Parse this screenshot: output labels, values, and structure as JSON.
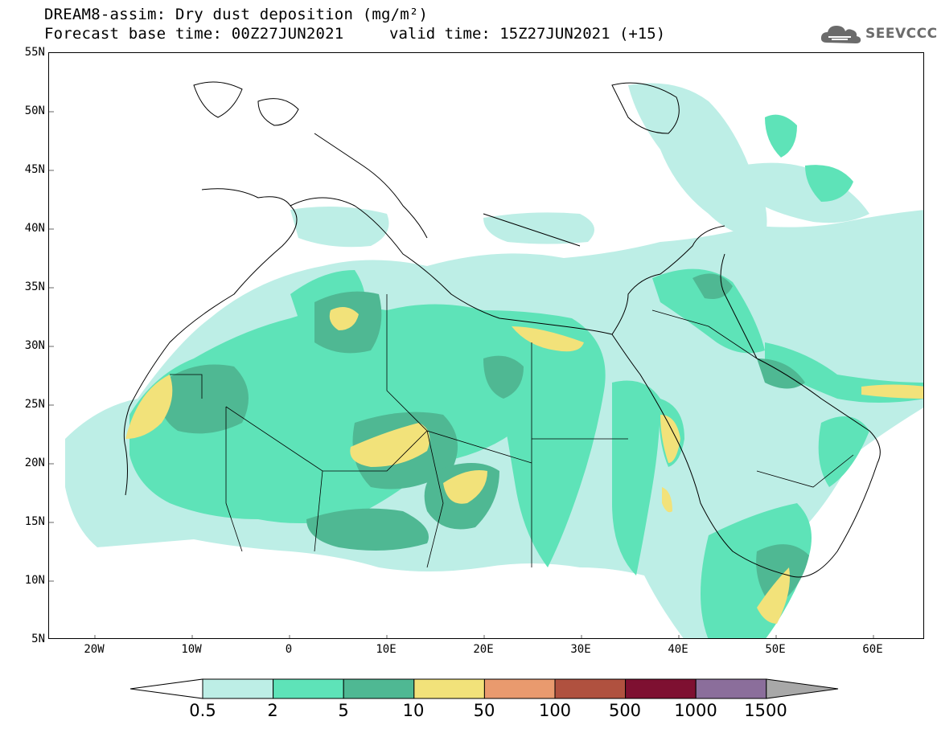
{
  "header": {
    "title_line1": "DREAM8-assim: Dry dust deposition (mg/m²)",
    "base_time": "Forecast base time: 00Z27JUN2021",
    "valid_time": "valid time: 15Z27JUN2021 (+15)",
    "logo_text": "SEEVCCC"
  },
  "map": {
    "lat_labels": [
      "55N",
      "50N",
      "45N",
      "40N",
      "35N",
      "30N",
      "25N",
      "20N",
      "15N",
      "10N",
      "5N"
    ],
    "lon_labels": [
      "20W",
      "10W",
      "0",
      "10E",
      "20E",
      "30E",
      "40E",
      "50E",
      "60E"
    ]
  },
  "colorbar": {
    "labels": [
      "0.5",
      "2",
      "5",
      "10",
      "50",
      "100",
      "500",
      "1000",
      "1500"
    ],
    "colors": [
      "#ffffff",
      "#bdeee6",
      "#5ee3b8",
      "#4fb893",
      "#f2e27a",
      "#e99a6e",
      "#b0513f",
      "#7e1031",
      "#8b6e9b",
      "#a8a8a8"
    ]
  },
  "palette": {
    "level1": "#bdeee6",
    "level2": "#5ee3b8",
    "level3": "#4fb893",
    "level4": "#f2e27a"
  }
}
